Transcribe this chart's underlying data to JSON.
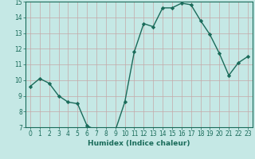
{
  "x": [
    0,
    1,
    2,
    3,
    4,
    5,
    6,
    7,
    8,
    9,
    10,
    11,
    12,
    13,
    14,
    15,
    16,
    17,
    18,
    19,
    20,
    21,
    22,
    23
  ],
  "y": [
    9.6,
    10.1,
    9.8,
    9.0,
    8.6,
    8.5,
    7.1,
    6.8,
    6.8,
    6.8,
    8.6,
    11.8,
    13.6,
    13.4,
    14.6,
    14.6,
    14.9,
    14.8,
    13.8,
    12.9,
    11.7,
    10.3,
    11.1,
    11.5
  ],
  "line_color": "#1a6b5a",
  "marker": "D",
  "marker_size": 2.2,
  "bg_color": "#c5e8e5",
  "grid_color": "#c4a8a8",
  "xlabel": "Humidex (Indice chaleur)",
  "xlim": [
    -0.5,
    23.5
  ],
  "ylim": [
    7,
    15
  ],
  "yticks": [
    7,
    8,
    9,
    10,
    11,
    12,
    13,
    14,
    15
  ],
  "xticks": [
    0,
    1,
    2,
    3,
    4,
    5,
    6,
    7,
    8,
    9,
    10,
    11,
    12,
    13,
    14,
    15,
    16,
    17,
    18,
    19,
    20,
    21,
    22,
    23
  ],
  "xlabel_fontsize": 6.5,
  "tick_fontsize": 5.5,
  "line_width": 1.0,
  "tick_color": "#1a6b5a",
  "spine_color": "#1a6b5a"
}
